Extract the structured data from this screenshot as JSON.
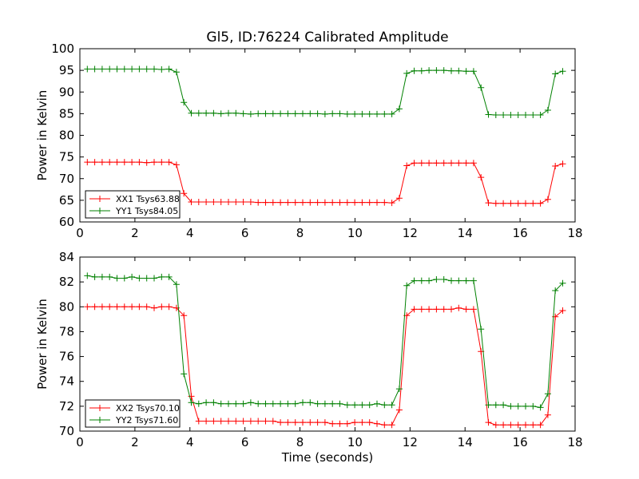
{
  "figure": {
    "title": "Gl5, ID:76224 Calibrated Amplitude"
  },
  "chart_data": [
    {
      "type": "line",
      "title": "Gl5, ID:76224 Calibrated Amplitude",
      "xlabel": "",
      "ylabel": "Power in Kelvin",
      "xlim": [
        0,
        18
      ],
      "ylim": [
        60,
        100
      ],
      "xticks": [
        0,
        2,
        4,
        6,
        8,
        10,
        12,
        14,
        16,
        18
      ],
      "yticks": [
        60,
        65,
        70,
        75,
        80,
        85,
        90,
        95,
        100
      ],
      "grid": false,
      "legend": "lower-left",
      "x": [
        0.27,
        0.54,
        0.81,
        1.08,
        1.35,
        1.62,
        1.89,
        2.16,
        2.43,
        2.7,
        2.97,
        3.24,
        3.51,
        3.78,
        4.05,
        4.32,
        4.59,
        4.86,
        5.13,
        5.4,
        5.67,
        5.94,
        6.21,
        6.48,
        6.75,
        7.02,
        7.29,
        7.56,
        7.83,
        8.1,
        8.37,
        8.64,
        8.91,
        9.18,
        9.45,
        9.72,
        9.99,
        10.26,
        10.53,
        10.8,
        11.07,
        11.34,
        11.61,
        11.88,
        12.15,
        12.42,
        12.69,
        12.96,
        13.23,
        13.5,
        13.77,
        14.04,
        14.31,
        14.58,
        14.85,
        15.12,
        15.39,
        15.66,
        15.93,
        16.2,
        16.47,
        16.74,
        17.01,
        17.28,
        17.55
      ],
      "series": [
        {
          "name": "XX1 Tsys63.88",
          "color": "#ff0000",
          "values": [
            73.8,
            73.8,
            73.8,
            73.8,
            73.8,
            73.8,
            73.8,
            73.8,
            73.7,
            73.8,
            73.8,
            73.8,
            73.2,
            66.6,
            64.6,
            64.6,
            64.6,
            64.6,
            64.6,
            64.6,
            64.6,
            64.6,
            64.6,
            64.5,
            64.5,
            64.5,
            64.5,
            64.5,
            64.5,
            64.5,
            64.5,
            64.5,
            64.5,
            64.5,
            64.5,
            64.5,
            64.5,
            64.5,
            64.5,
            64.5,
            64.5,
            64.4,
            65.5,
            73.0,
            73.6,
            73.6,
            73.6,
            73.6,
            73.6,
            73.6,
            73.6,
            73.6,
            73.6,
            70.3,
            64.4,
            64.3,
            64.3,
            64.3,
            64.3,
            64.3,
            64.3,
            64.3,
            65.2,
            72.9,
            73.4
          ]
        },
        {
          "name": "YY1 Tsys84.05",
          "color": "#008000",
          "values": [
            95.3,
            95.3,
            95.3,
            95.3,
            95.3,
            95.3,
            95.3,
            95.3,
            95.3,
            95.3,
            95.2,
            95.3,
            94.6,
            87.6,
            85.1,
            85.1,
            85.1,
            85.1,
            85.0,
            85.1,
            85.1,
            85.0,
            84.9,
            85.0,
            85.0,
            85.0,
            85.0,
            85.0,
            85.0,
            85.0,
            85.0,
            85.0,
            84.9,
            85.0,
            85.0,
            84.9,
            84.9,
            84.9,
            84.9,
            84.9,
            84.9,
            84.9,
            86.1,
            94.3,
            94.9,
            94.9,
            95.0,
            95.0,
            95.0,
            94.9,
            94.9,
            94.8,
            94.8,
            91.0,
            84.8,
            84.7,
            84.7,
            84.7,
            84.7,
            84.7,
            84.7,
            84.7,
            85.8,
            94.2,
            94.8
          ]
        }
      ]
    },
    {
      "type": "line",
      "title": "",
      "xlabel": "Time (seconds)",
      "ylabel": "Power in Kelvin",
      "xlim": [
        0,
        18
      ],
      "ylim": [
        70,
        84
      ],
      "xticks": [
        0,
        2,
        4,
        6,
        8,
        10,
        12,
        14,
        16,
        18
      ],
      "yticks": [
        70,
        72,
        74,
        76,
        78,
        80,
        82,
        84
      ],
      "grid": false,
      "legend": "lower-left",
      "x": [
        0.27,
        0.54,
        0.81,
        1.08,
        1.35,
        1.62,
        1.89,
        2.16,
        2.43,
        2.7,
        2.97,
        3.24,
        3.51,
        3.78,
        4.05,
        4.32,
        4.59,
        4.86,
        5.13,
        5.4,
        5.67,
        5.94,
        6.21,
        6.48,
        6.75,
        7.02,
        7.29,
        7.56,
        7.83,
        8.1,
        8.37,
        8.64,
        8.91,
        9.18,
        9.45,
        9.72,
        9.99,
        10.26,
        10.53,
        10.8,
        11.07,
        11.34,
        11.61,
        11.88,
        12.15,
        12.42,
        12.69,
        12.96,
        13.23,
        13.5,
        13.77,
        14.04,
        14.31,
        14.58,
        14.85,
        15.12,
        15.39,
        15.66,
        15.93,
        16.2,
        16.47,
        16.74,
        17.01,
        17.28,
        17.55
      ],
      "series": [
        {
          "name": "XX2 Tsys70.10",
          "color": "#ff0000",
          "values": [
            80.0,
            80.0,
            80.0,
            80.0,
            80.0,
            80.0,
            80.0,
            80.0,
            80.0,
            79.9,
            80.0,
            80.0,
            79.9,
            79.3,
            72.8,
            70.8,
            70.8,
            70.8,
            70.8,
            70.8,
            70.8,
            70.8,
            70.8,
            70.8,
            70.8,
            70.8,
            70.7,
            70.7,
            70.7,
            70.7,
            70.7,
            70.7,
            70.7,
            70.6,
            70.6,
            70.6,
            70.7,
            70.7,
            70.7,
            70.6,
            70.5,
            70.5,
            71.7,
            79.3,
            79.8,
            79.8,
            79.8,
            79.8,
            79.8,
            79.8,
            79.9,
            79.8,
            79.8,
            76.4,
            70.7,
            70.5,
            70.5,
            70.5,
            70.5,
            70.5,
            70.5,
            70.5,
            71.3,
            79.2,
            79.7
          ]
        },
        {
          "name": "YY2 Tsys71.60",
          "color": "#008000",
          "values": [
            82.5,
            82.4,
            82.4,
            82.4,
            82.3,
            82.3,
            82.4,
            82.3,
            82.3,
            82.3,
            82.4,
            82.4,
            81.8,
            74.6,
            72.3,
            72.2,
            72.3,
            72.3,
            72.2,
            72.2,
            72.2,
            72.2,
            72.3,
            72.2,
            72.2,
            72.2,
            72.2,
            72.2,
            72.2,
            72.3,
            72.3,
            72.2,
            72.2,
            72.2,
            72.2,
            72.1,
            72.1,
            72.1,
            72.1,
            72.2,
            72.1,
            72.1,
            73.4,
            81.7,
            82.1,
            82.1,
            82.1,
            82.2,
            82.2,
            82.1,
            82.1,
            82.1,
            82.1,
            78.2,
            72.1,
            72.1,
            72.1,
            72.0,
            72.0,
            72.0,
            72.0,
            71.9,
            73.0,
            81.3,
            81.9
          ]
        }
      ]
    }
  ]
}
